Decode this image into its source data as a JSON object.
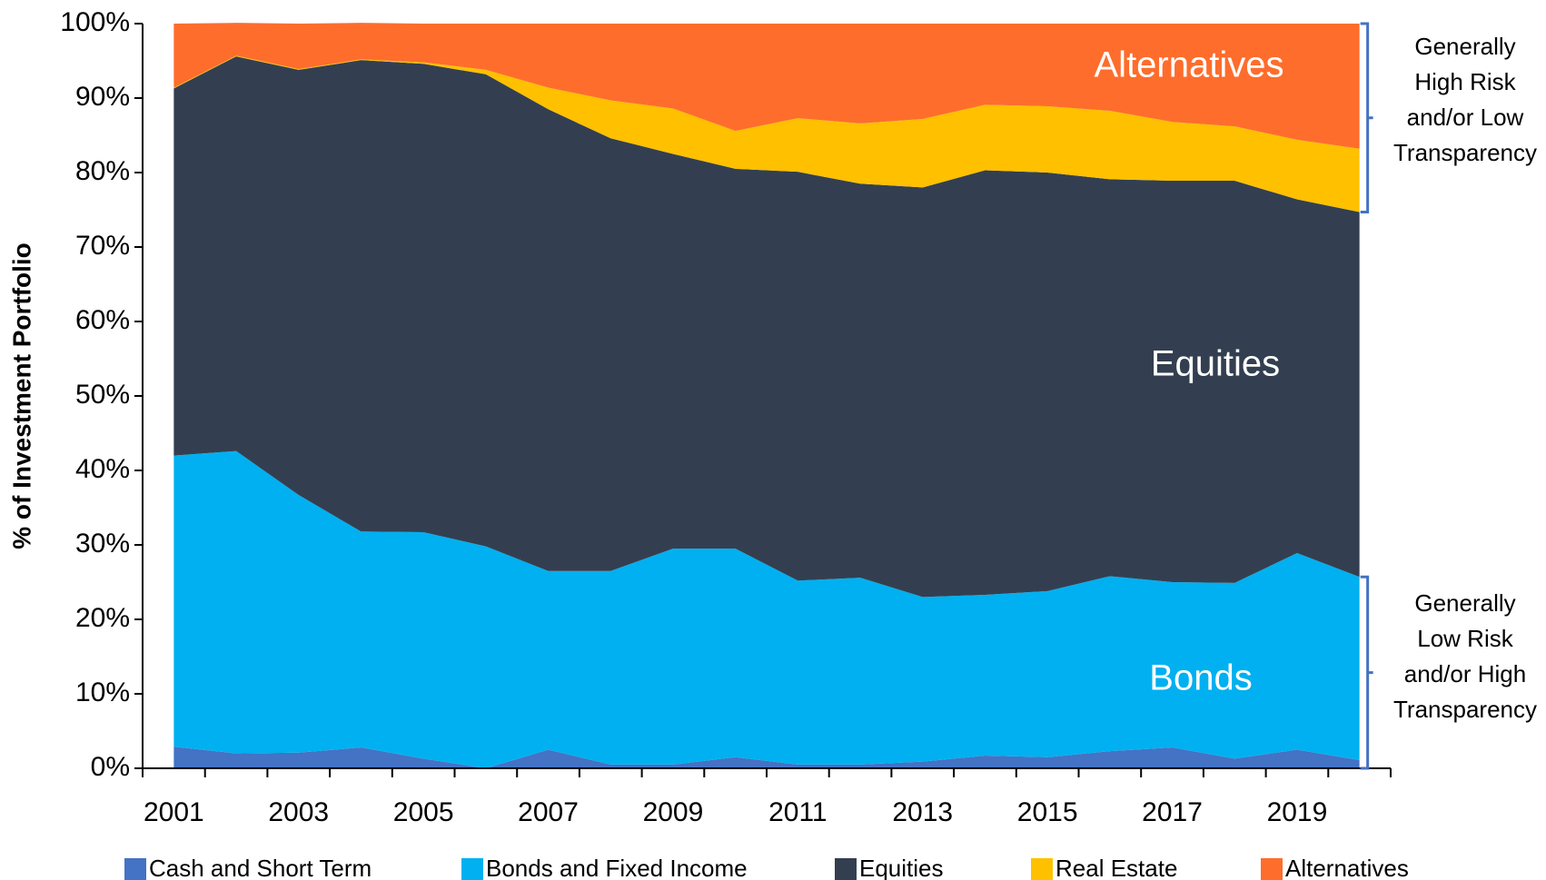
{
  "chart_data": {
    "type": "stacked_area",
    "y_label": "% of Investment Portfolio",
    "x": [
      2001,
      2002,
      2003,
      2004,
      2005,
      2006,
      2007,
      2008,
      2009,
      2010,
      2011,
      2012,
      2013,
      2014,
      2015,
      2016,
      2017,
      2018,
      2019,
      2020
    ],
    "xlim": [
      2000.5,
      2020.5
    ],
    "xticks": [
      2001,
      2003,
      2005,
      2007,
      2009,
      2011,
      2013,
      2015,
      2017,
      2019
    ],
    "ylim": [
      0,
      100
    ],
    "yticks": [
      {
        "value": 0,
        "label": "0%"
      },
      {
        "value": 10,
        "label": "10%"
      },
      {
        "value": 20,
        "label": "20%"
      },
      {
        "value": 30,
        "label": "30%"
      },
      {
        "value": 40,
        "label": "40%"
      },
      {
        "value": 50,
        "label": "50%"
      },
      {
        "value": 60,
        "label": "60%"
      },
      {
        "value": 70,
        "label": "70%"
      },
      {
        "value": 80,
        "label": "80%"
      },
      {
        "value": 90,
        "label": "90%"
      },
      {
        "value": 100,
        "label": "100%"
      }
    ],
    "series": [
      {
        "name": "Cash and Short Term",
        "color": "#4472c4",
        "values": [
          2.9,
          2.0,
          2.1,
          2.8,
          1.3,
          0,
          2.5,
          0.5,
          0.5,
          1.5,
          0.5,
          0.5,
          0.9,
          1.7,
          1.5,
          2.3,
          2.8,
          1.3,
          2.5,
          1.1
        ]
      },
      {
        "name": "Bonds and Fixed Income",
        "color": "#00b0f0",
        "values": [
          39.1,
          40.6,
          34.6,
          29.0,
          30.4,
          29.8,
          24.0,
          26.0,
          29.0,
          28.0,
          24.7,
          25.1,
          22.1,
          21.6,
          22.3,
          23.5,
          22.2,
          23.6,
          26.4,
          24.6
        ]
      },
      {
        "name": "Equities",
        "color": "#333f50",
        "values": [
          49.3,
          53.0,
          57.1,
          63.3,
          62.9,
          63.4,
          62.0,
          58.1,
          53.0,
          51.0,
          54.9,
          52.9,
          55.0,
          57.0,
          56.2,
          53.3,
          53.9,
          54.0,
          47.5,
          49.0
        ]
      },
      {
        "name": "Real Estate",
        "color": "#ffc000",
        "values": [
          0.1,
          0.1,
          0.1,
          0.1,
          0.2,
          0.6,
          2.9,
          5.1,
          6.1,
          5.1,
          7.2,
          8.1,
          9.2,
          8.8,
          8.9,
          9.2,
          7.9,
          7.3,
          8.0,
          8.5
        ]
      },
      {
        "name": "Alternatives",
        "color": "#fe6d2c",
        "values": [
          8.6,
          4.4,
          6.1,
          4.9,
          5.2,
          6.2,
          8.6,
          10.3,
          11.4,
          14.4,
          12.7,
          13.4,
          12.8,
          10.9,
          11.1,
          11.7,
          13.2,
          13.8,
          15.6,
          16.8
        ]
      }
    ],
    "annotations": [
      "Alternatives",
      "Equities",
      "Bonds"
    ],
    "bracket_notes": [
      [
        "Generally",
        "High Risk",
        "and/or Low",
        "Transparency"
      ],
      [
        "Generally",
        "Low Risk",
        "and/or High",
        "Transparency"
      ]
    ],
    "legend": "bottom"
  }
}
